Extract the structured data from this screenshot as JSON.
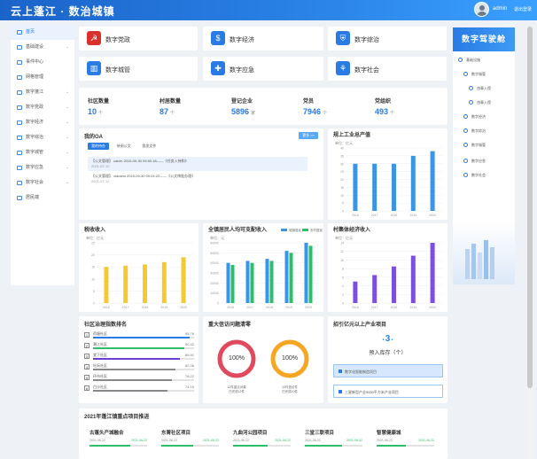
{
  "header": {
    "title": "云上蓬江 · 数治城镇",
    "user": "admin",
    "logout": "退出登录"
  },
  "sidebar": {
    "items": [
      {
        "label": "首页",
        "active": true,
        "chevron": false
      },
      {
        "label": "基础建设",
        "chevron": true
      },
      {
        "label": "事件中心",
        "chevron": false
      },
      {
        "label": "网格管理",
        "chevron": false
      },
      {
        "label": "数字蓬江",
        "chevron": true
      },
      {
        "label": "数字党政",
        "chevron": true
      },
      {
        "label": "数字经济",
        "chevron": true
      },
      {
        "label": "数字综治",
        "chevron": true
      },
      {
        "label": "数字城管",
        "chevron": true
      },
      {
        "label": "数字应急",
        "chevron": true
      },
      {
        "label": "数字社会",
        "chevron": true
      },
      {
        "label": "居民端",
        "chevron": false
      }
    ]
  },
  "nav_cards": [
    {
      "label": "数字党政",
      "icon": "party-flag-icon",
      "color": "#d9302c",
      "glyph": "☭"
    },
    {
      "label": "数字经济",
      "icon": "money-bag-icon",
      "color": "#2a7be4",
      "glyph": "$"
    },
    {
      "label": "数字综治",
      "icon": "shield-icon",
      "color": "#2a7be4",
      "glyph": "⛨"
    },
    {
      "label": "数字城管",
      "icon": "building-icon",
      "color": "#2a7be4",
      "glyph": "▥"
    },
    {
      "label": "数字应急",
      "icon": "emergency-icon",
      "color": "#2a7be4",
      "glyph": "✚"
    },
    {
      "label": "数字社会",
      "icon": "community-icon",
      "color": "#2a7be4",
      "glyph": "⚘"
    }
  ],
  "stats": [
    {
      "label": "社区数量",
      "value": "10",
      "unit": "个"
    },
    {
      "label": "村居数量",
      "value": "87",
      "unit": "个"
    },
    {
      "label": "登记企业",
      "value": "5896",
      "unit": "家"
    },
    {
      "label": "党员",
      "value": "7946",
      "unit": "个"
    },
    {
      "label": "党组织",
      "value": "493",
      "unit": "个"
    }
  ],
  "oa": {
    "title": "我的OA",
    "more": "更多 >>",
    "tabs": [
      "我的待办",
      "待阅公文",
      "我发文件"
    ],
    "rows": [
      {
        "line1": "【公文管理】 caixin    2015-09-30 09:50:18——《任务入待和》",
        "line2": "2021-07-12"
      },
      {
        "line1": "【公文管理】 xiaoshu    2015-09-30 09:24:22——《公文审批办理》",
        "line2": "2021-07-12"
      }
    ]
  },
  "rank": {
    "title": "社区治理指数排名",
    "rows": [
      {
        "name": "荷塘社区",
        "value": "95.78",
        "pct": 0.96,
        "color": "#2a7be4"
      },
      {
        "name": "潮江社区",
        "value": "90.42",
        "pct": 0.9,
        "color": "#2bbf6a"
      },
      {
        "name": "棠下社区",
        "value": "86.91",
        "pct": 0.86,
        "color": "#6a3fd0"
      },
      {
        "name": "杜阮社区",
        "value": "82.36",
        "pct": 0.82,
        "color": "#888888"
      },
      {
        "name": "环市社区",
        "value": "78.22",
        "pct": 0.78,
        "color": "#888888"
      },
      {
        "name": "白沙社区",
        "value": "74.15",
        "pct": 0.74,
        "color": "#888888"
      }
    ]
  },
  "major_cases": {
    "title": "重大信访问题清零",
    "rings": [
      {
        "pct_label": "100%",
        "color": "#e04a5f",
        "caption1": "12件重点对象",
        "caption2": "已完成12件"
      },
      {
        "pct_label": "100%",
        "color": "#f5a623",
        "caption1": "10件信访件",
        "caption2": "已完成10件"
      }
    ]
  },
  "invest": {
    "title": "招引亿元以上产业项目",
    "count": "3",
    "count_label": "预入库存（个）",
    "items": [
      "数字化智能制造项目",
      "三星新型产业9000平方米产业项目"
    ]
  },
  "projects_title": "2021年蓬江镇重点项目推进",
  "projects": [
    {
      "name": "古蓬头产城融合",
      "start": "2021-06-22",
      "end": "2021-06-22",
      "pct": 0.7
    },
    {
      "name": "东菁社区项目",
      "start": "2021-06-22",
      "end": "2021-06-22",
      "pct": 0.55
    },
    {
      "name": "九曲河公园项目",
      "start": "2021-06-22",
      "end": "2021-06-22",
      "pct": 0.6
    },
    {
      "name": "三堂三联项目",
      "start": "2021-06-22",
      "end": "2021-06-22",
      "pct": 0.65
    },
    {
      "name": "智慧健康城",
      "start": "2021-06-22",
      "end": "2021-06-22",
      "pct": 0.5
    }
  ],
  "right_panel": {
    "title": "数字驾驶舱",
    "items": [
      "基础设施",
      "数字城管",
      "违章入侵",
      "违章入侵",
      "数字经济",
      "数字综治",
      "数字城管",
      "数字应急",
      "数字社会"
    ]
  },
  "chart_data": [
    {
      "type": "bar",
      "title": "规上工业总产值",
      "ylabel": "单位：亿元",
      "categories": [
        "2016",
        "2017",
        "2018",
        "2019",
        "2020"
      ],
      "values": [
        30,
        30,
        30,
        35,
        38
      ],
      "ylim": [
        0,
        40
      ],
      "yticks": [
        "0",
        "5",
        "10",
        "15",
        "20",
        "25",
        "30",
        "35",
        "40"
      ],
      "color": "#3b95e6"
    },
    {
      "type": "bar",
      "title": "税收收入",
      "ylabel": "单位：亿元",
      "categories": [
        "2016",
        "2017",
        "2018",
        "2019",
        "2020"
      ],
      "values": [
        15,
        15.5,
        16,
        17,
        19
      ],
      "ylim": [
        0,
        25
      ],
      "yticks": [
        "0",
        "5",
        "10",
        "15",
        "20",
        "25"
      ],
      "color": "#f5c930"
    },
    {
      "type": "bar",
      "title": "全镇居民人均可支配收入",
      "ylabel": "单位：元",
      "categories": [
        "2016",
        "2017",
        "2018",
        "2019",
        "2020"
      ],
      "series": [
        {
          "name": "城镇居民",
          "values": [
            40000,
            42000,
            44000,
            52000,
            60000
          ],
          "color": "#3b95e6"
        },
        {
          "name": "农村居民",
          "values": [
            38000,
            40000,
            42000,
            50000,
            57000
          ],
          "color": "#2bbf6a"
        }
      ],
      "ylim": [
        0,
        60000
      ],
      "yticks": [
        "0",
        "10000",
        "20000",
        "30000",
        "40000",
        "50000",
        "60000"
      ]
    },
    {
      "type": "bar",
      "title": "村集体经济收入",
      "ylabel": "单位：亿元",
      "categories": [
        "2016",
        "2017",
        "2018",
        "2019",
        "2020"
      ],
      "values": [
        5,
        6.5,
        8.5,
        11,
        14
      ],
      "ylim": [
        0,
        14
      ],
      "yticks": [
        "0",
        "2",
        "4",
        "6",
        "8",
        "10",
        "12",
        "14"
      ],
      "color": "#7b4fe0"
    }
  ]
}
